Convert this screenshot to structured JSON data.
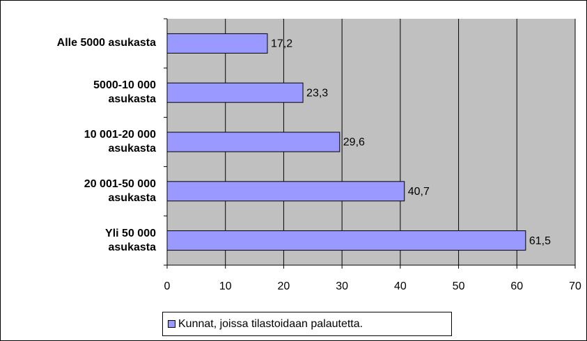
{
  "chart_data": {
    "type": "bar",
    "orientation": "horizontal",
    "categories": [
      "Alle 5000 asukasta",
      "5000-10 000\nasukasta",
      "10 001-20 000\nasukasta",
      "20 001-50 000\nasukasta",
      "Yli 50 000\nasukasta"
    ],
    "series": [
      {
        "name": "Kunnat, joissa tilastoidaan palautetta.",
        "color": "#9999ff",
        "values": [
          17.2,
          23.3,
          29.6,
          40.7,
          61.5
        ],
        "value_labels": [
          "17,2",
          "23,3",
          "29,6",
          "40,7",
          "61,5"
        ]
      }
    ],
    "xlim": [
      0,
      70
    ],
    "xticks": [
      0,
      10,
      20,
      30,
      40,
      50,
      60,
      70
    ],
    "grid": true,
    "plot_background": "#c0c0c0",
    "legend": "bottom"
  }
}
